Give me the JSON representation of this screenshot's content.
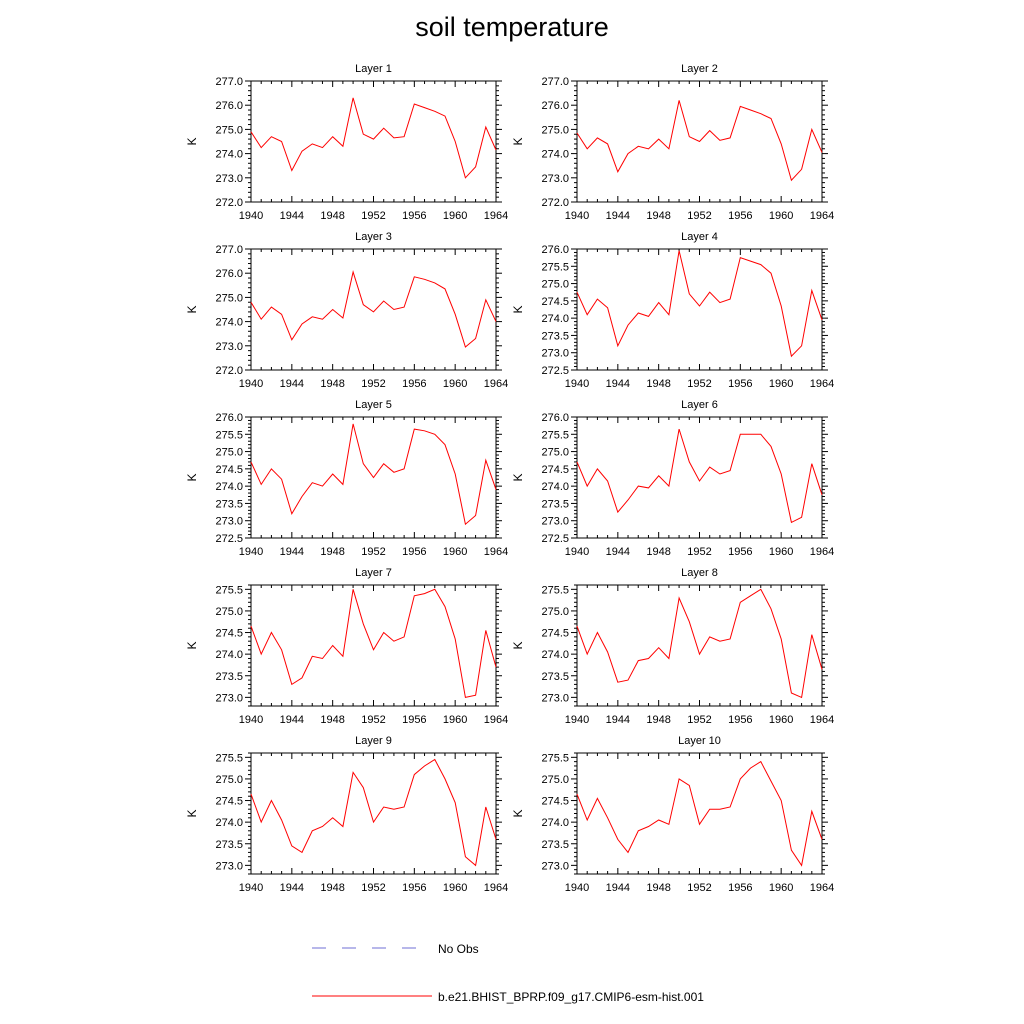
{
  "title": "soil temperature",
  "legend": {
    "obs_label": "No Obs",
    "model_label": "b.e21.BHIST_BPRP.f09_g17.CMIP6-esm-hist.001",
    "obs_color": "#6f6fd6",
    "model_color": "#ff0000"
  },
  "chart_data": [
    {
      "type": "line",
      "title": "Layer 1",
      "ylabel": "K",
      "xlim": [
        1940,
        1964
      ],
      "ylim": [
        272.0,
        277.0
      ],
      "xticks": [
        "1940",
        "1944",
        "1948",
        "1952",
        "1956",
        "1960",
        "1964"
      ],
      "yticks": [
        "272.0",
        "273.0",
        "274.0",
        "275.0",
        "276.0",
        "277.0"
      ],
      "series": [
        {
          "x": [
            1940,
            1941,
            1942,
            1943,
            1944,
            1945,
            1946,
            1947,
            1948,
            1949,
            1950,
            1951,
            1952,
            1953,
            1954,
            1955,
            1956,
            1957,
            1958,
            1959,
            1960,
            1961,
            1962,
            1963,
            1964
          ],
          "values": [
            274.9,
            274.25,
            274.7,
            274.5,
            273.3,
            274.1,
            274.4,
            274.25,
            274.7,
            274.3,
            276.3,
            274.8,
            274.6,
            275.05,
            274.65,
            274.7,
            276.05,
            275.9,
            275.75,
            275.55,
            274.5,
            273.0,
            273.45,
            275.1,
            274.15
          ]
        }
      ]
    },
    {
      "type": "line",
      "title": "Layer 2",
      "ylabel": "K",
      "xlim": [
        1940,
        1964
      ],
      "ylim": [
        272.0,
        277.0
      ],
      "xticks": [
        "1940",
        "1944",
        "1948",
        "1952",
        "1956",
        "1960",
        "1964"
      ],
      "yticks": [
        "272.0",
        "273.0",
        "274.0",
        "275.0",
        "276.0",
        "277.0"
      ],
      "series": [
        {
          "x": [
            1940,
            1941,
            1942,
            1943,
            1944,
            1945,
            1946,
            1947,
            1948,
            1949,
            1950,
            1951,
            1952,
            1953,
            1954,
            1955,
            1956,
            1957,
            1958,
            1959,
            1960,
            1961,
            1962,
            1963,
            1964
          ],
          "values": [
            274.85,
            274.2,
            274.65,
            274.4,
            273.25,
            274.0,
            274.3,
            274.2,
            274.6,
            274.2,
            276.2,
            274.7,
            274.5,
            274.95,
            274.55,
            274.65,
            275.95,
            275.8,
            275.65,
            275.45,
            274.4,
            272.9,
            273.35,
            275.0,
            274.05
          ]
        }
      ]
    },
    {
      "type": "line",
      "title": "Layer 3",
      "ylabel": "K",
      "xlim": [
        1940,
        1964
      ],
      "ylim": [
        272.0,
        277.0
      ],
      "xticks": [
        "1940",
        "1944",
        "1948",
        "1952",
        "1956",
        "1960",
        "1964"
      ],
      "yticks": [
        "272.0",
        "273.0",
        "274.0",
        "275.0",
        "276.0",
        "277.0"
      ],
      "series": [
        {
          "x": [
            1940,
            1941,
            1942,
            1943,
            1944,
            1945,
            1946,
            1947,
            1948,
            1949,
            1950,
            1951,
            1952,
            1953,
            1954,
            1955,
            1956,
            1957,
            1958,
            1959,
            1960,
            1961,
            1962,
            1963,
            1964
          ],
          "values": [
            274.8,
            274.1,
            274.6,
            274.3,
            273.25,
            273.9,
            274.2,
            274.1,
            274.5,
            274.15,
            276.05,
            274.7,
            274.4,
            274.85,
            274.5,
            274.6,
            275.85,
            275.75,
            275.6,
            275.35,
            274.3,
            272.95,
            273.3,
            274.9,
            274.0
          ]
        }
      ]
    },
    {
      "type": "line",
      "title": "Layer 4",
      "ylabel": "K",
      "xlim": [
        1940,
        1964
      ],
      "ylim": [
        272.5,
        276.0
      ],
      "xticks": [
        "1940",
        "1944",
        "1948",
        "1952",
        "1956",
        "1960",
        "1964"
      ],
      "yticks": [
        "272.5",
        "273.0",
        "273.5",
        "274.0",
        "274.5",
        "275.0",
        "275.5",
        "276.0"
      ],
      "series": [
        {
          "x": [
            1940,
            1941,
            1942,
            1943,
            1944,
            1945,
            1946,
            1947,
            1948,
            1949,
            1950,
            1951,
            1952,
            1953,
            1954,
            1955,
            1956,
            1957,
            1958,
            1959,
            1960,
            1961,
            1962,
            1963,
            1964
          ],
          "values": [
            274.75,
            274.1,
            274.55,
            274.3,
            273.2,
            273.8,
            274.15,
            274.05,
            274.45,
            274.1,
            275.95,
            274.7,
            274.35,
            274.75,
            274.45,
            274.55,
            275.75,
            275.65,
            275.55,
            275.3,
            274.35,
            272.9,
            273.2,
            274.8,
            273.95
          ]
        }
      ]
    },
    {
      "type": "line",
      "title": "Layer 5",
      "ylabel": "K",
      "xlim": [
        1940,
        1964
      ],
      "ylim": [
        272.5,
        276.0
      ],
      "xticks": [
        "1940",
        "1944",
        "1948",
        "1952",
        "1956",
        "1960",
        "1964"
      ],
      "yticks": [
        "272.5",
        "273.0",
        "273.5",
        "274.0",
        "274.5",
        "275.0",
        "275.5",
        "276.0"
      ],
      "series": [
        {
          "x": [
            1940,
            1941,
            1942,
            1943,
            1944,
            1945,
            1946,
            1947,
            1948,
            1949,
            1950,
            1951,
            1952,
            1953,
            1954,
            1955,
            1956,
            1957,
            1958,
            1959,
            1960,
            1961,
            1962,
            1963,
            1964
          ],
          "values": [
            274.7,
            274.05,
            274.5,
            274.2,
            273.2,
            273.7,
            274.1,
            274.0,
            274.35,
            274.05,
            275.8,
            274.65,
            274.25,
            274.65,
            274.4,
            274.5,
            275.65,
            275.6,
            275.5,
            275.2,
            274.35,
            272.9,
            273.15,
            274.75,
            273.9
          ]
        }
      ]
    },
    {
      "type": "line",
      "title": "Layer 6",
      "ylabel": "K",
      "xlim": [
        1940,
        1964
      ],
      "ylim": [
        272.5,
        276.0
      ],
      "xticks": [
        "1940",
        "1944",
        "1948",
        "1952",
        "1956",
        "1960",
        "1964"
      ],
      "yticks": [
        "272.5",
        "273.0",
        "273.5",
        "274.0",
        "274.5",
        "275.0",
        "275.5",
        "276.0"
      ],
      "series": [
        {
          "x": [
            1940,
            1941,
            1942,
            1943,
            1944,
            1945,
            1946,
            1947,
            1948,
            1949,
            1950,
            1951,
            1952,
            1953,
            1954,
            1955,
            1956,
            1957,
            1958,
            1959,
            1960,
            1961,
            1962,
            1963,
            1964
          ],
          "values": [
            274.7,
            274.0,
            274.5,
            274.15,
            273.25,
            273.6,
            274.0,
            273.95,
            274.3,
            274.0,
            275.65,
            274.7,
            274.15,
            274.55,
            274.35,
            274.45,
            275.5,
            275.5,
            275.5,
            275.15,
            274.35,
            272.95,
            273.1,
            274.65,
            273.75
          ]
        }
      ]
    },
    {
      "type": "line",
      "title": "Layer 7",
      "ylabel": "K",
      "xlim": [
        1940,
        1964
      ],
      "ylim": [
        272.8,
        275.6
      ],
      "xticks": [
        "1940",
        "1944",
        "1948",
        "1952",
        "1956",
        "1960",
        "1964"
      ],
      "yticks": [
        "273.0",
        "273.5",
        "274.0",
        "274.5",
        "275.0",
        "275.5"
      ],
      "series": [
        {
          "x": [
            1940,
            1941,
            1942,
            1943,
            1944,
            1945,
            1946,
            1947,
            1948,
            1949,
            1950,
            1951,
            1952,
            1953,
            1954,
            1955,
            1956,
            1957,
            1958,
            1959,
            1960,
            1961,
            1962,
            1963,
            1964
          ],
          "values": [
            274.65,
            274.0,
            274.5,
            274.1,
            273.3,
            273.45,
            273.95,
            273.9,
            274.2,
            273.95,
            275.5,
            274.7,
            274.1,
            274.5,
            274.3,
            274.4,
            275.35,
            275.4,
            275.5,
            275.1,
            274.35,
            273.0,
            273.05,
            274.55,
            273.7
          ]
        }
      ]
    },
    {
      "type": "line",
      "title": "Layer 8",
      "ylabel": "K",
      "xlim": [
        1940,
        1964
      ],
      "ylim": [
        272.8,
        275.6
      ],
      "xticks": [
        "1940",
        "1944",
        "1948",
        "1952",
        "1956",
        "1960",
        "1964"
      ],
      "yticks": [
        "273.0",
        "273.5",
        "274.0",
        "274.5",
        "275.0",
        "275.5"
      ],
      "series": [
        {
          "x": [
            1940,
            1941,
            1942,
            1943,
            1944,
            1945,
            1946,
            1947,
            1948,
            1949,
            1950,
            1951,
            1952,
            1953,
            1954,
            1955,
            1956,
            1957,
            1958,
            1959,
            1960,
            1961,
            1962,
            1963,
            1964
          ],
          "values": [
            274.65,
            274.0,
            274.5,
            274.05,
            273.35,
            273.4,
            273.85,
            273.9,
            274.15,
            273.9,
            275.3,
            274.75,
            274.0,
            274.4,
            274.3,
            274.35,
            275.2,
            275.35,
            275.5,
            275.05,
            274.35,
            273.1,
            273.0,
            274.45,
            273.65
          ]
        }
      ]
    },
    {
      "type": "line",
      "title": "Layer 9",
      "ylabel": "K",
      "xlim": [
        1940,
        1964
      ],
      "ylim": [
        272.8,
        275.6
      ],
      "xticks": [
        "1940",
        "1944",
        "1948",
        "1952",
        "1956",
        "1960",
        "1964"
      ],
      "yticks": [
        "273.0",
        "273.5",
        "274.0",
        "274.5",
        "275.0",
        "275.5"
      ],
      "series": [
        {
          "x": [
            1940,
            1941,
            1942,
            1943,
            1944,
            1945,
            1946,
            1947,
            1948,
            1949,
            1950,
            1951,
            1952,
            1953,
            1954,
            1955,
            1956,
            1957,
            1958,
            1959,
            1960,
            1961,
            1962,
            1963,
            1964
          ],
          "values": [
            274.65,
            274.0,
            274.5,
            274.05,
            273.45,
            273.3,
            273.8,
            273.9,
            274.1,
            273.9,
            275.15,
            274.8,
            274.0,
            274.35,
            274.3,
            274.35,
            275.1,
            275.3,
            275.45,
            275.0,
            274.45,
            273.2,
            273.0,
            274.35,
            273.6
          ]
        }
      ]
    },
    {
      "type": "line",
      "title": "Layer 10",
      "ylabel": "K",
      "xlim": [
        1940,
        1964
      ],
      "ylim": [
        272.8,
        275.6
      ],
      "xticks": [
        "1940",
        "1944",
        "1948",
        "1952",
        "1956",
        "1960",
        "1964"
      ],
      "yticks": [
        "273.0",
        "273.5",
        "274.0",
        "274.5",
        "275.0",
        "275.5"
      ],
      "series": [
        {
          "x": [
            1940,
            1941,
            1942,
            1943,
            1944,
            1945,
            1946,
            1947,
            1948,
            1949,
            1950,
            1951,
            1952,
            1953,
            1954,
            1955,
            1956,
            1957,
            1958,
            1959,
            1960,
            1961,
            1962,
            1963,
            1964
          ],
          "values": [
            274.65,
            274.05,
            274.55,
            274.1,
            273.6,
            273.3,
            273.8,
            273.9,
            274.05,
            273.95,
            275.0,
            274.85,
            273.95,
            274.3,
            274.3,
            274.35,
            275.0,
            275.25,
            275.4,
            274.95,
            274.5,
            273.35,
            273.0,
            274.25,
            273.6
          ]
        }
      ]
    }
  ]
}
